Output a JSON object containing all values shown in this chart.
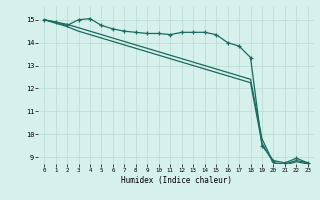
{
  "xlabel": "Humidex (Indice chaleur)",
  "bg_color": "#d6f0ec",
  "grid_color": "#b8d8d4",
  "line_color": "#1a6b60",
  "xlim": [
    -0.5,
    23.5
  ],
  "ylim": [
    8.7,
    15.6
  ],
  "yticks": [
    9,
    10,
    11,
    12,
    13,
    14,
    15
  ],
  "xticks": [
    0,
    1,
    2,
    3,
    4,
    5,
    6,
    7,
    8,
    9,
    10,
    11,
    12,
    13,
    14,
    15,
    16,
    17,
    18,
    19,
    20,
    21,
    22,
    23
  ],
  "line1_x": [
    0,
    1,
    2,
    3,
    4,
    5,
    6,
    7,
    8,
    9,
    10,
    11,
    12,
    13,
    14,
    15,
    16,
    17,
    18,
    19,
    20,
    21,
    22,
    23
  ],
  "line1_y": [
    15.0,
    14.9,
    14.75,
    15.0,
    15.05,
    14.75,
    14.6,
    14.5,
    14.45,
    14.4,
    14.4,
    14.35,
    14.45,
    14.45,
    14.45,
    14.35,
    14.0,
    13.85,
    13.35,
    9.5,
    8.85,
    8.75,
    8.95,
    8.75
  ],
  "line2_x": [
    0,
    1,
    2,
    3,
    4,
    5,
    6,
    7,
    8,
    9,
    10,
    11,
    12,
    13,
    14,
    15,
    16,
    17,
    18,
    19,
    20,
    21,
    22,
    23
  ],
  "line2_y": [
    15.0,
    14.85,
    14.7,
    14.5,
    14.35,
    14.2,
    14.05,
    13.9,
    13.75,
    13.6,
    13.45,
    13.3,
    13.15,
    13.0,
    12.85,
    12.7,
    12.55,
    12.4,
    12.25,
    9.6,
    8.75,
    8.65,
    8.8,
    8.7
  ],
  "line3_x": [
    0,
    1,
    2,
    3,
    4,
    5,
    6,
    7,
    8,
    9,
    10,
    11,
    12,
    13,
    14,
    15,
    16,
    17,
    18,
    19,
    20,
    21,
    22,
    23
  ],
  "line3_y": [
    15.0,
    14.9,
    14.8,
    14.65,
    14.5,
    14.35,
    14.2,
    14.05,
    13.9,
    13.75,
    13.6,
    13.45,
    13.3,
    13.15,
    13.0,
    12.85,
    12.7,
    12.55,
    12.4,
    9.8,
    8.75,
    8.7,
    8.85,
    8.75
  ]
}
